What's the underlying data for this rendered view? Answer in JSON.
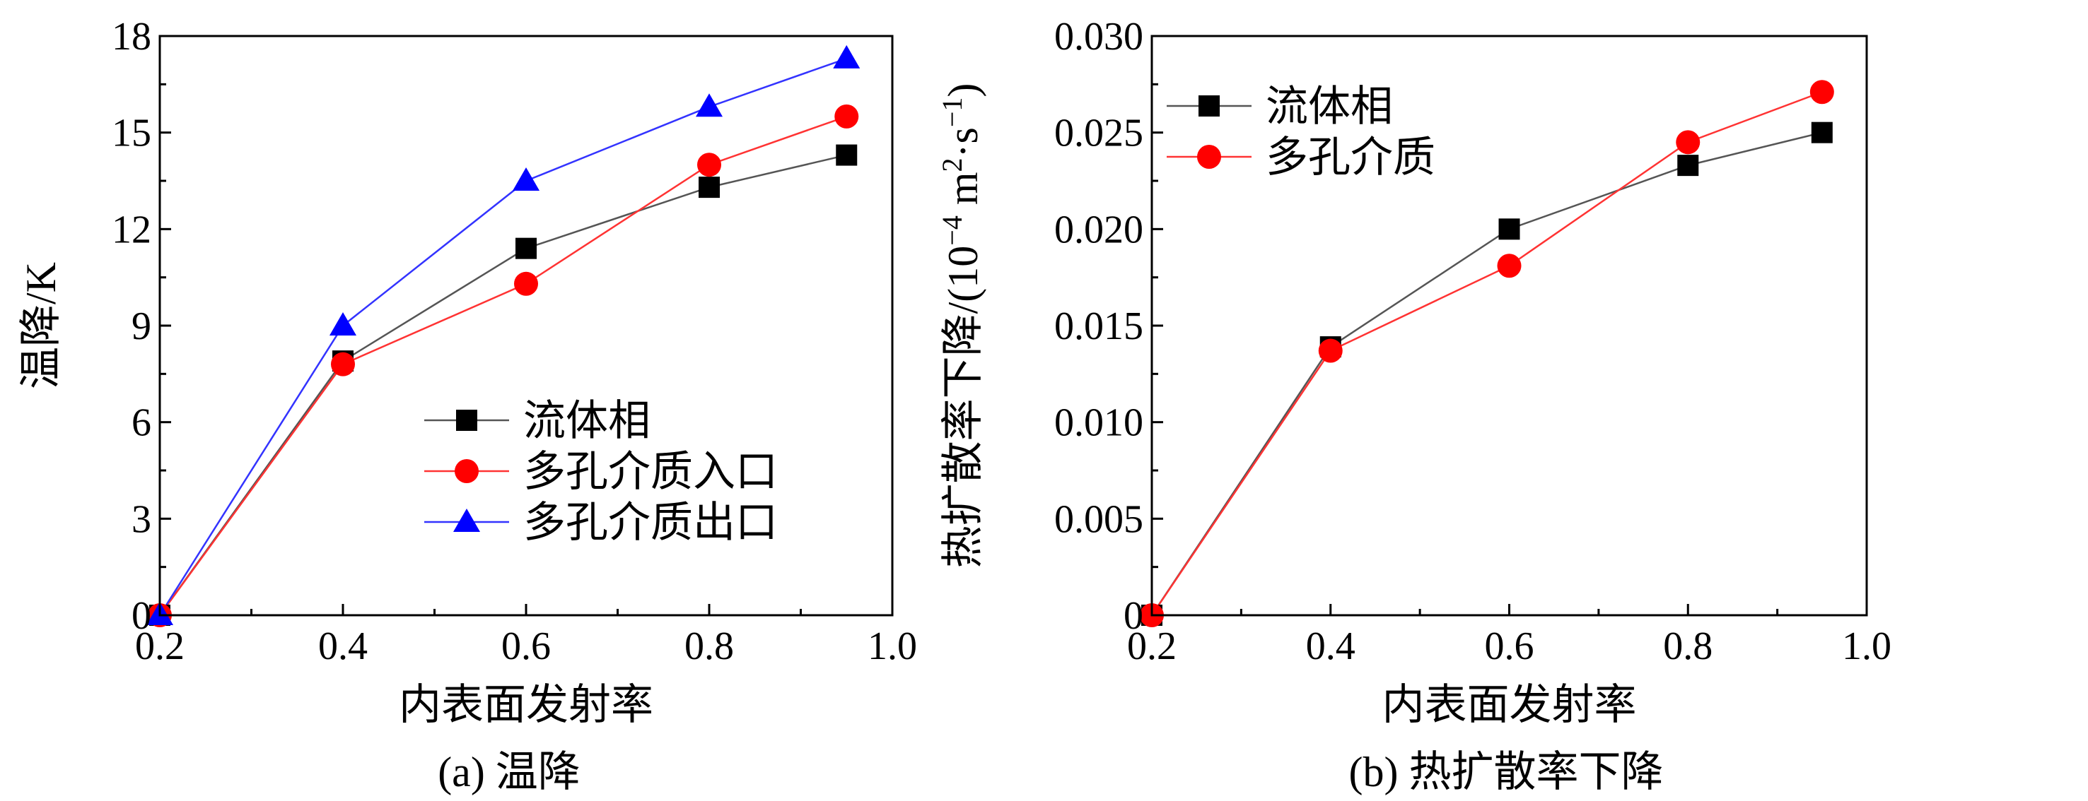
{
  "chart_data": [
    {
      "type": "line",
      "caption": "(a) 温降",
      "xlabel": "内表面发射率",
      "ylabel": "温降/K",
      "xlim": [
        0.2,
        1.0
      ],
      "ylim": [
        0,
        18
      ],
      "xticks": [
        "0.2",
        "0.4",
        "0.6",
        "0.8",
        "1.0"
      ],
      "yticks": [
        "0",
        "3",
        "6",
        "9",
        "12",
        "15",
        "18"
      ],
      "legend_position": "center-right",
      "series": [
        {
          "name": "流体相",
          "marker": "square",
          "color": "#000000",
          "line_color": "#555555",
          "x": [
            0.2,
            0.4,
            0.6,
            0.8,
            0.95
          ],
          "values": [
            0.0,
            7.9,
            11.4,
            13.3,
            14.3
          ]
        },
        {
          "name": "多孔介质入口",
          "marker": "circle",
          "color": "#ff0000",
          "line_color": "#ff3333",
          "x": [
            0.2,
            0.4,
            0.6,
            0.8,
            0.95
          ],
          "values": [
            0.0,
            7.8,
            10.3,
            14.0,
            15.5
          ]
        },
        {
          "name": "多孔介质出口",
          "marker": "triangle",
          "color": "#0000ff",
          "line_color": "#3333ff",
          "x": [
            0.2,
            0.4,
            0.6,
            0.8,
            0.95
          ],
          "values": [
            0.0,
            9.0,
            13.5,
            15.8,
            17.3
          ]
        }
      ]
    },
    {
      "type": "line",
      "caption": "(b) 热扩散率下降",
      "xlabel": "内表面发射率",
      "ylabel": "热扩散率下降/(10−4 m2·s−1)",
      "ylabel_parts": {
        "main": "热扩散率下降/(10",
        "sup1": "−4",
        "mid": " m",
        "sup2": "2",
        "mid2": "·s",
        "sup3": "−1",
        "end": ")"
      },
      "xlim": [
        0.2,
        1.0
      ],
      "ylim": [
        0,
        0.03
      ],
      "xticks": [
        "0.2",
        "0.4",
        "0.6",
        "0.8",
        "1.0"
      ],
      "yticks": [
        "0",
        "0.005",
        "0.010",
        "0.015",
        "0.020",
        "0.025",
        "0.030"
      ],
      "legend_position": "top-left",
      "series": [
        {
          "name": "流体相",
          "marker": "square",
          "color": "#000000",
          "line_color": "#555555",
          "x": [
            0.2,
            0.4,
            0.6,
            0.8,
            0.95
          ],
          "values": [
            0.0,
            0.0139,
            0.02,
            0.0233,
            0.025
          ]
        },
        {
          "name": "多孔介质",
          "marker": "circle",
          "color": "#ff0000",
          "line_color": "#ff3333",
          "x": [
            0.2,
            0.4,
            0.6,
            0.8,
            0.95
          ],
          "values": [
            0.0,
            0.0137,
            0.0181,
            0.0245,
            0.0271
          ]
        }
      ]
    }
  ]
}
